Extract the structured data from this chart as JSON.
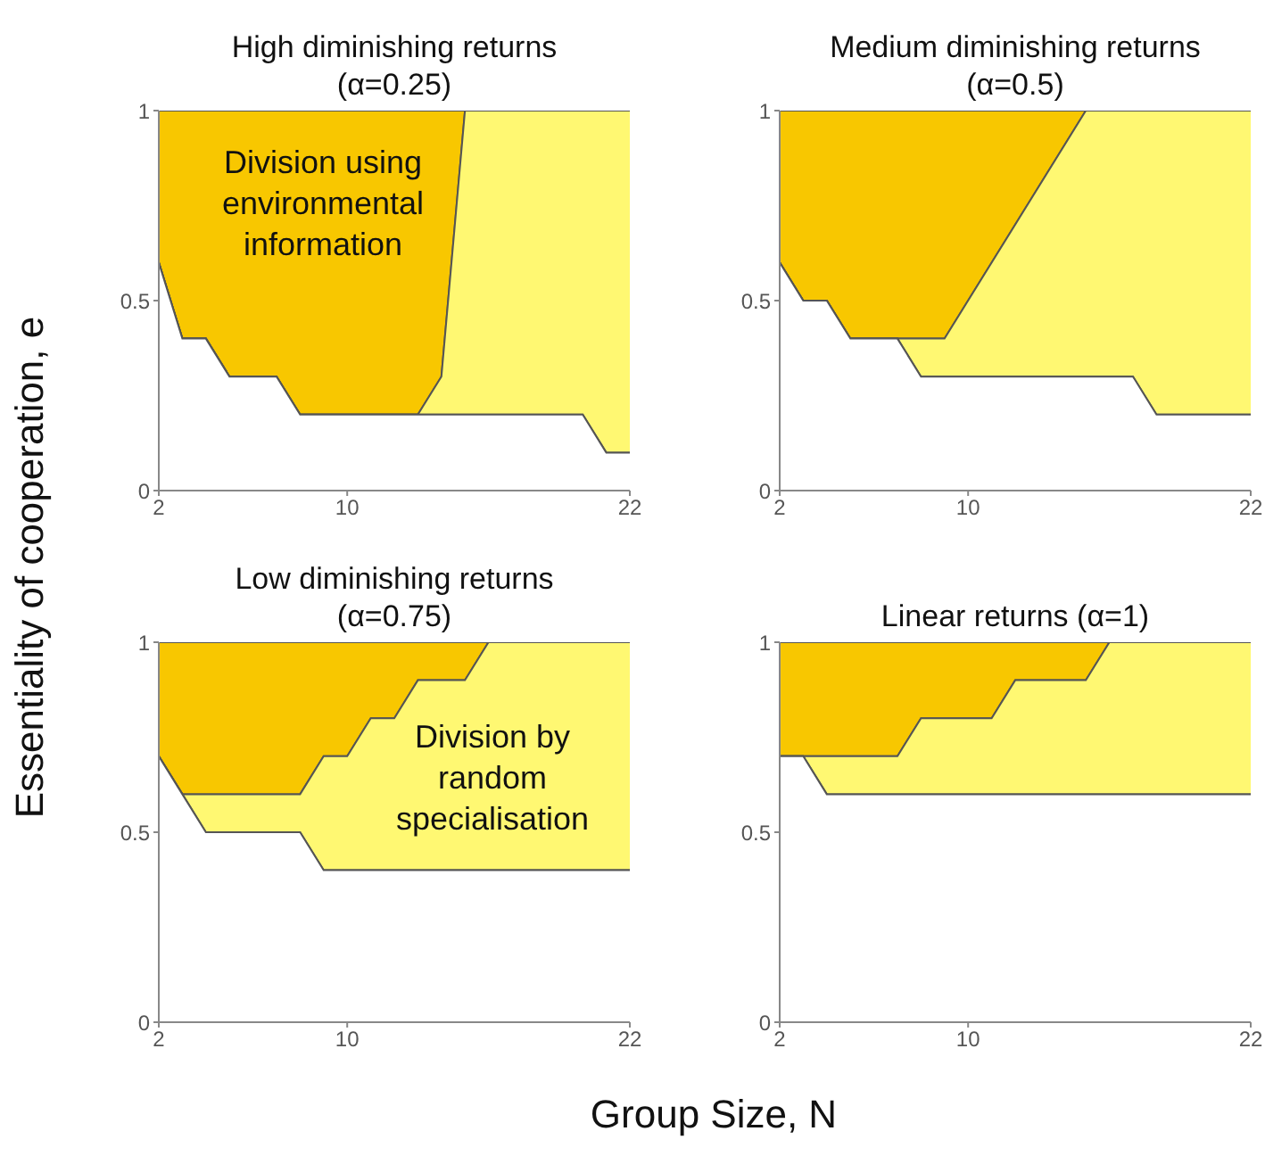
{
  "chart_data": [
    {
      "type": "area",
      "stacked": true,
      "title": "High diminishing returns (α=0.25)",
      "ylabel": "Essentiality of cooperation, e",
      "x": [
        2,
        3,
        4,
        5,
        7,
        8,
        13,
        14,
        15,
        20,
        21,
        22
      ],
      "xlim": [
        2,
        22
      ],
      "xticks": [
        2,
        10,
        22
      ],
      "ylim": [
        0,
        1
      ],
      "yticks": [
        0,
        0.5,
        1
      ],
      "legend": false,
      "annotations": [
        "Division using environmental information"
      ],
      "series": [
        {
          "color": "#ffffff",
          "values": [
            0.6,
            0.4,
            0.4,
            0.3,
            0.3,
            0.2,
            0.2,
            0.2,
            0.2,
            0.2,
            0.1,
            0.1
          ]
        },
        {
          "color": "#fff872",
          "values": [
            0,
            0,
            0,
            0,
            0,
            0,
            0,
            0.1,
            0.8,
            0.8,
            0.9,
            0.9
          ]
        },
        {
          "color": "#f8c700",
          "values": [
            0.4,
            0.6,
            0.6,
            0.7,
            0.7,
            0.8,
            0.8,
            0.7,
            0,
            0,
            0,
            0
          ]
        }
      ]
    },
    {
      "type": "area",
      "stacked": true,
      "title": "Medium diminishing returns (α=0.5)",
      "x": [
        2,
        3,
        4,
        5,
        7,
        8,
        9,
        15,
        17,
        18,
        22
      ],
      "xlim": [
        2,
        22
      ],
      "xticks": [
        2,
        10,
        22
      ],
      "ylim": [
        0,
        1
      ],
      "yticks": [
        0,
        0.5,
        1
      ],
      "legend": false,
      "series": [
        {
          "color": "#ffffff",
          "values": [
            0.6,
            0.5,
            0.5,
            0.4,
            0.4,
            0.3,
            0.3,
            0.3,
            0.3,
            0.2,
            0.2
          ]
        },
        {
          "color": "#fff872",
          "values": [
            0,
            0,
            0,
            0,
            0,
            0.1,
            0.1,
            0.7,
            0.7,
            0.8,
            0.8
          ]
        },
        {
          "color": "#f8c700",
          "values": [
            0.4,
            0.5,
            0.5,
            0.6,
            0.6,
            0.6,
            0.6,
            0,
            0,
            0,
            0
          ]
        }
      ]
    },
    {
      "type": "area",
      "stacked": true,
      "title": "Low diminishing returns (α=0.75)",
      "xlabel": "Group Size, N",
      "x": [
        2,
        3,
        4,
        8,
        9,
        10,
        11,
        12,
        13,
        15,
        16,
        22
      ],
      "xlim": [
        2,
        22
      ],
      "xticks": [
        2,
        10,
        22
      ],
      "ylim": [
        0,
        1
      ],
      "yticks": [
        0,
        0.5,
        1
      ],
      "legend": false,
      "annotations": [
        "Division by random specialisation"
      ],
      "series": [
        {
          "color": "#ffffff",
          "values": [
            0.7,
            0.6,
            0.5,
            0.5,
            0.4,
            0.4,
            0.4,
            0.4,
            0.4,
            0.4,
            0.4,
            0.4
          ]
        },
        {
          "color": "#fff872",
          "values": [
            0,
            0,
            0.1,
            0.1,
            0.3,
            0.3,
            0.4,
            0.4,
            0.5,
            0.5,
            0.6,
            0.6
          ]
        },
        {
          "color": "#f8c700",
          "values": [
            0.3,
            0.4,
            0.4,
            0.4,
            0.3,
            0.3,
            0.2,
            0.2,
            0.1,
            0.1,
            0,
            0
          ]
        }
      ]
    },
    {
      "type": "area",
      "stacked": true,
      "title": "Linear returns (α=1)",
      "x": [
        2,
        3,
        4,
        7,
        8,
        11,
        12,
        15,
        16,
        22
      ],
      "xlim": [
        2,
        22
      ],
      "xticks": [
        2,
        10,
        22
      ],
      "ylim": [
        0,
        1
      ],
      "yticks": [
        0,
        0.5,
        1
      ],
      "legend": false,
      "series": [
        {
          "color": "#ffffff",
          "values": [
            0.7,
            0.7,
            0.6,
            0.6,
            0.6,
            0.6,
            0.6,
            0.6,
            0.6,
            0.6
          ]
        },
        {
          "color": "#fff872",
          "values": [
            0,
            0,
            0.1,
            0.1,
            0.2,
            0.2,
            0.3,
            0.3,
            0.4,
            0.4
          ]
        },
        {
          "color": "#f8c700",
          "values": [
            0.3,
            0.3,
            0.3,
            0.3,
            0.2,
            0.2,
            0.1,
            0.1,
            0,
            0
          ]
        }
      ]
    }
  ]
}
